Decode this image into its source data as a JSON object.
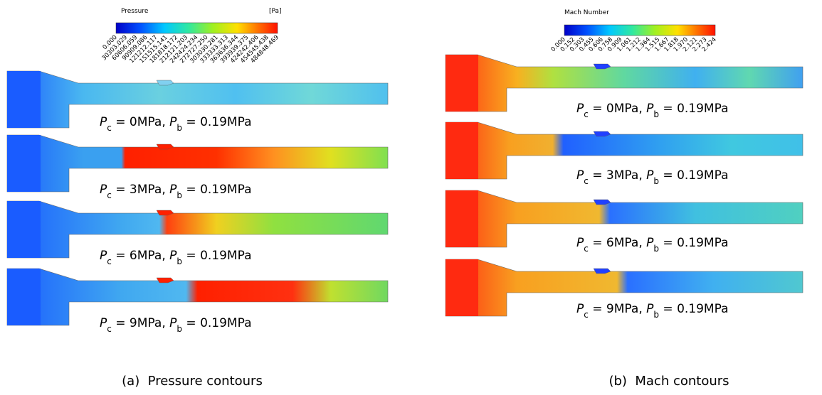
{
  "panels": [
    {
      "caption": "(a)  Pressure contours",
      "colorbar": {
        "title": "Pressure",
        "unit": "[Pa]",
        "ticks": [
          "0.000",
          "30303.029",
          "60606.059",
          "90909.086",
          "121212.117",
          "151515.141",
          "181818.172",
          "212121.203",
          "242424.234",
          "272727.250",
          "303030.281",
          "333333.313",
          "363636.344",
          "393939.375",
          "424242.406",
          "454545.438",
          "484848.469"
        ]
      },
      "contours": [
        {
          "label": [
            "P",
            "c",
            " = 0MPa, ",
            "P",
            "b",
            " = 0.19MPa"
          ]
        },
        {
          "label": [
            "P",
            "c",
            " = 3MPa, ",
            "P",
            "b",
            " = 0.19MPa"
          ]
        },
        {
          "label": [
            "P",
            "c",
            " = 6MPa, ",
            "P",
            "b",
            " = 0.19MPa"
          ]
        },
        {
          "label": [
            "P",
            "c",
            " = 9MPa, ",
            "P",
            "b",
            " = 0.19MPa"
          ]
        }
      ]
    },
    {
      "caption": "(b)  Mach contours",
      "colorbar": {
        "title": "Mach Number",
        "ticks": [
          "0.000",
          "0.152",
          "0.303",
          "0.455",
          "0.606",
          "0.758",
          "0.909",
          "1.061",
          "1.212",
          "1.364",
          "1.515",
          "1.667",
          "1.818",
          "1.970",
          "2.121",
          "2.273",
          "2.424"
        ]
      },
      "contours": [
        {
          "label": [
            "P",
            "c",
            " = 0MPa, ",
            "P",
            "b",
            " = 0.19MPa"
          ]
        },
        {
          "label": [
            "P",
            "c",
            " = 3MPa, ",
            "P",
            "b",
            " = 0.19MPa"
          ]
        },
        {
          "label": [
            "P",
            "c",
            " = 6MPa, ",
            "P",
            "b",
            " = 0.19MPa"
          ]
        },
        {
          "label": [
            "P",
            "c",
            " = 9MPa, ",
            "P",
            "b",
            " = 0.19MPa"
          ]
        }
      ]
    }
  ]
}
